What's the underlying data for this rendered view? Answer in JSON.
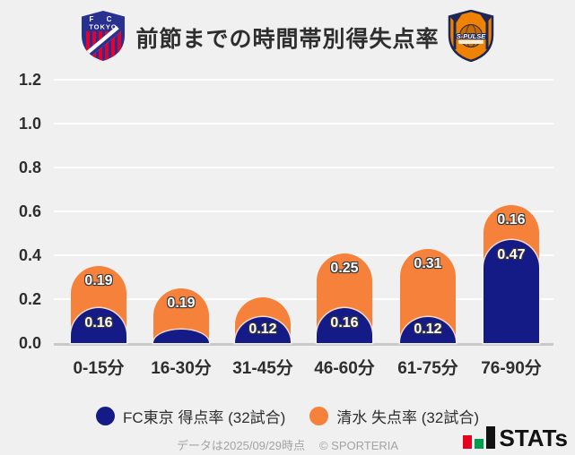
{
  "header": {
    "title": "前節までの時間帯別得失点率",
    "home_crest": {
      "line1": "F C",
      "line2": "TOKYO"
    },
    "away_crest": {
      "line1": "S-PULSE"
    }
  },
  "chart_data": {
    "type": "bar",
    "stacked": true,
    "title": "前節までの時間帯別得失点率",
    "categories": [
      "0-15分",
      "16-30分",
      "31-45分",
      "46-60分",
      "61-75分",
      "76-90分"
    ],
    "series": [
      {
        "name": "FC東京 得点率 (32試合)",
        "color": "#141b87",
        "values": [
          0.16,
          0.06,
          0.12,
          0.16,
          0.12,
          0.47
        ],
        "labels": [
          "0.16",
          "",
          "0.12",
          "0.16",
          "0.12",
          "0.47"
        ]
      },
      {
        "name": "清水 失点率 (32試合)",
        "color": "#f5813a",
        "values": [
          0.19,
          0.19,
          0.09,
          0.25,
          0.31,
          0.16
        ],
        "labels": [
          "0.19",
          "0.19",
          "",
          "0.25",
          "0.31",
          "0.16"
        ]
      }
    ],
    "xlabel": "",
    "ylabel": "",
    "ylim": [
      0,
      1.2
    ],
    "yticks": [
      "0.0",
      "0.2",
      "0.4",
      "0.6",
      "0.8",
      "1.0",
      "1.2"
    ],
    "grid": true,
    "legend_position": "bottom"
  },
  "legend": {
    "items": [
      {
        "label": "FC東京 得点率 (32試合)",
        "color": "#141b87"
      },
      {
        "label": "清水 失点率 (32試合)",
        "color": "#f5813a"
      }
    ]
  },
  "footer": {
    "note": "データは2025/09/29時点",
    "copyright": "© SPORTERIA",
    "stats_logo": {
      "text": "STATs",
      "bar_colors": [
        "#e8001f",
        "#009e4c",
        "#121212"
      ]
    }
  }
}
